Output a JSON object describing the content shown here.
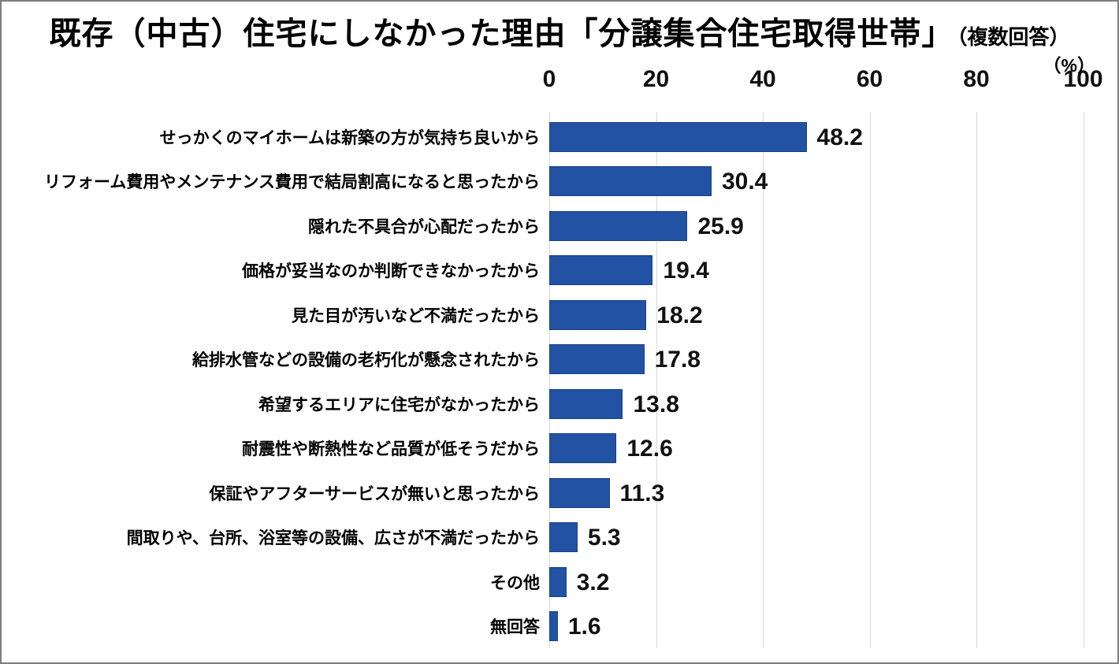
{
  "title": {
    "main": "既存（中古）住宅にしなかった理由「分譲集合住宅取得世帯」",
    "suffix": "（複数回答）"
  },
  "chart_data": {
    "type": "bar",
    "orientation": "horizontal",
    "title": "既存（中古）住宅にしなかった理由「分譲集合住宅取得世帯」（複数回答）",
    "unit_label": "（%）",
    "xlabel": "",
    "ylabel": "",
    "xlim": [
      0,
      100
    ],
    "x_ticks": [
      0,
      20,
      40,
      60,
      80,
      100
    ],
    "grid": true,
    "legend": false,
    "bar_color": "#2152a3",
    "gridline_color": "#d9d9d9",
    "categories": [
      "せっかくのマイホームは新築の方が気持ち良いから",
      "リフォーム費用やメンテナンス費用で結局割高になると思ったから",
      "隠れた不具合が心配だったから",
      "価格が妥当なのか判断できなかったから",
      "見た目が汚いなど不満だったから",
      "給排水管などの設備の老朽化が懸念されたから",
      "希望するエリアに住宅がなかったから",
      "耐震性や断熱性など品質が低そうだから",
      "保証やアフターサービスが無いと思ったから",
      "間取りや、台所、浴室等の設備、広さが不満だったから",
      "その他",
      "無回答"
    ],
    "values": [
      48.2,
      30.4,
      25.9,
      19.4,
      18.2,
      17.8,
      13.8,
      12.6,
      11.3,
      5.3,
      3.2,
      1.6
    ]
  }
}
